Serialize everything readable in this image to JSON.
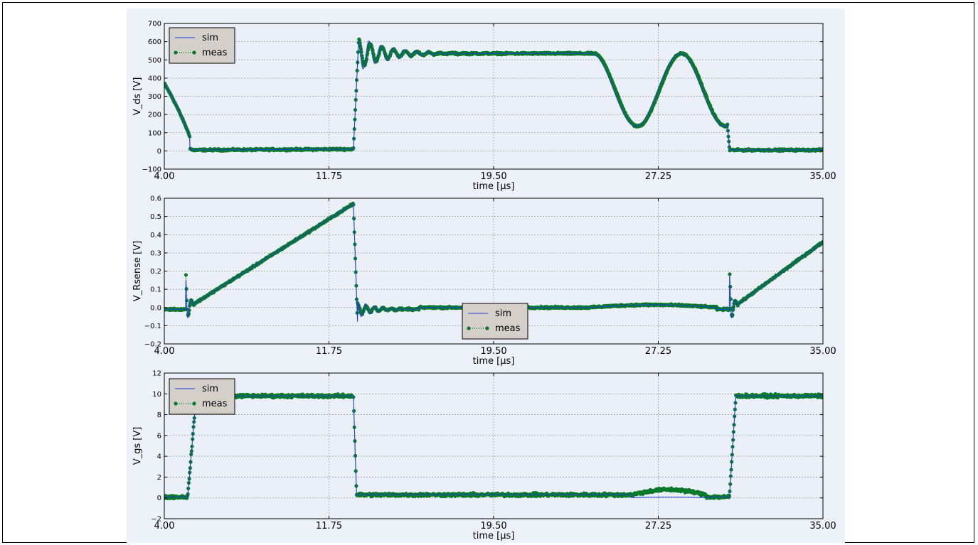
{
  "colors": {
    "figure_bg": "#edf2f9",
    "axes_bg": "#ebf0f8",
    "sim": "#1f3fd8",
    "meas": "#0a7a2a",
    "grid": "#9a9a9a",
    "legend_bg": "#d4cfc8"
  },
  "chart_data": [
    {
      "type": "line",
      "ylabel": "V_ds [V]",
      "xlabel": "time [µs]",
      "xlim": [
        4.0,
        35.0
      ],
      "ylim": [
        -100,
        700
      ],
      "grid": true,
      "legend_position": "top-left",
      "xticks": [
        "4.00",
        "11.75",
        "19.50",
        "27.25",
        "35.00"
      ],
      "yticks": [
        "−100",
        "0",
        "100",
        "200",
        "300",
        "400",
        "500",
        "600",
        "700"
      ],
      "ytick_values": [
        -100,
        0,
        100,
        200,
        300,
        400,
        500,
        600,
        700
      ],
      "series": [
        {
          "name": "sim",
          "kind": "vds"
        },
        {
          "name": "meas",
          "kind": "vds"
        }
      ]
    },
    {
      "type": "line",
      "ylabel": "V_Rsense [V]",
      "xlabel": "time [µs]",
      "xlim": [
        4.0,
        35.0
      ],
      "ylim": [
        -0.2,
        0.6
      ],
      "grid": true,
      "legend_position": "bottom-center",
      "xticks": [
        "4.00",
        "11.75",
        "19.50",
        "27.25",
        "35.00"
      ],
      "yticks": [
        "−0.2",
        "−0.1",
        "0.0",
        "0.1",
        "0.2",
        "0.3",
        "0.4",
        "0.5",
        "0.6"
      ],
      "ytick_values": [
        -0.2,
        -0.1,
        0.0,
        0.1,
        0.2,
        0.3,
        0.4,
        0.5,
        0.6
      ],
      "series": [
        {
          "name": "sim",
          "kind": "vrs"
        },
        {
          "name": "meas",
          "kind": "vrs"
        }
      ]
    },
    {
      "type": "line",
      "ylabel": "V_gs [V]",
      "xlabel": "time [µs]",
      "xlim": [
        4.0,
        35.0
      ],
      "ylim": [
        -2,
        12
      ],
      "grid": true,
      "legend_position": "top-left",
      "xticks": [
        "4.00",
        "11.75",
        "19.50",
        "27.25",
        "35.00"
      ],
      "yticks": [
        "−2",
        "0",
        "2",
        "4",
        "6",
        "8",
        "10",
        "12"
      ],
      "ytick_values": [
        -2,
        0,
        2,
        4,
        6,
        8,
        10,
        12
      ],
      "series": [
        {
          "name": "sim",
          "kind": "vgs"
        },
        {
          "name": "meas",
          "kind": "vgs"
        }
      ]
    }
  ]
}
